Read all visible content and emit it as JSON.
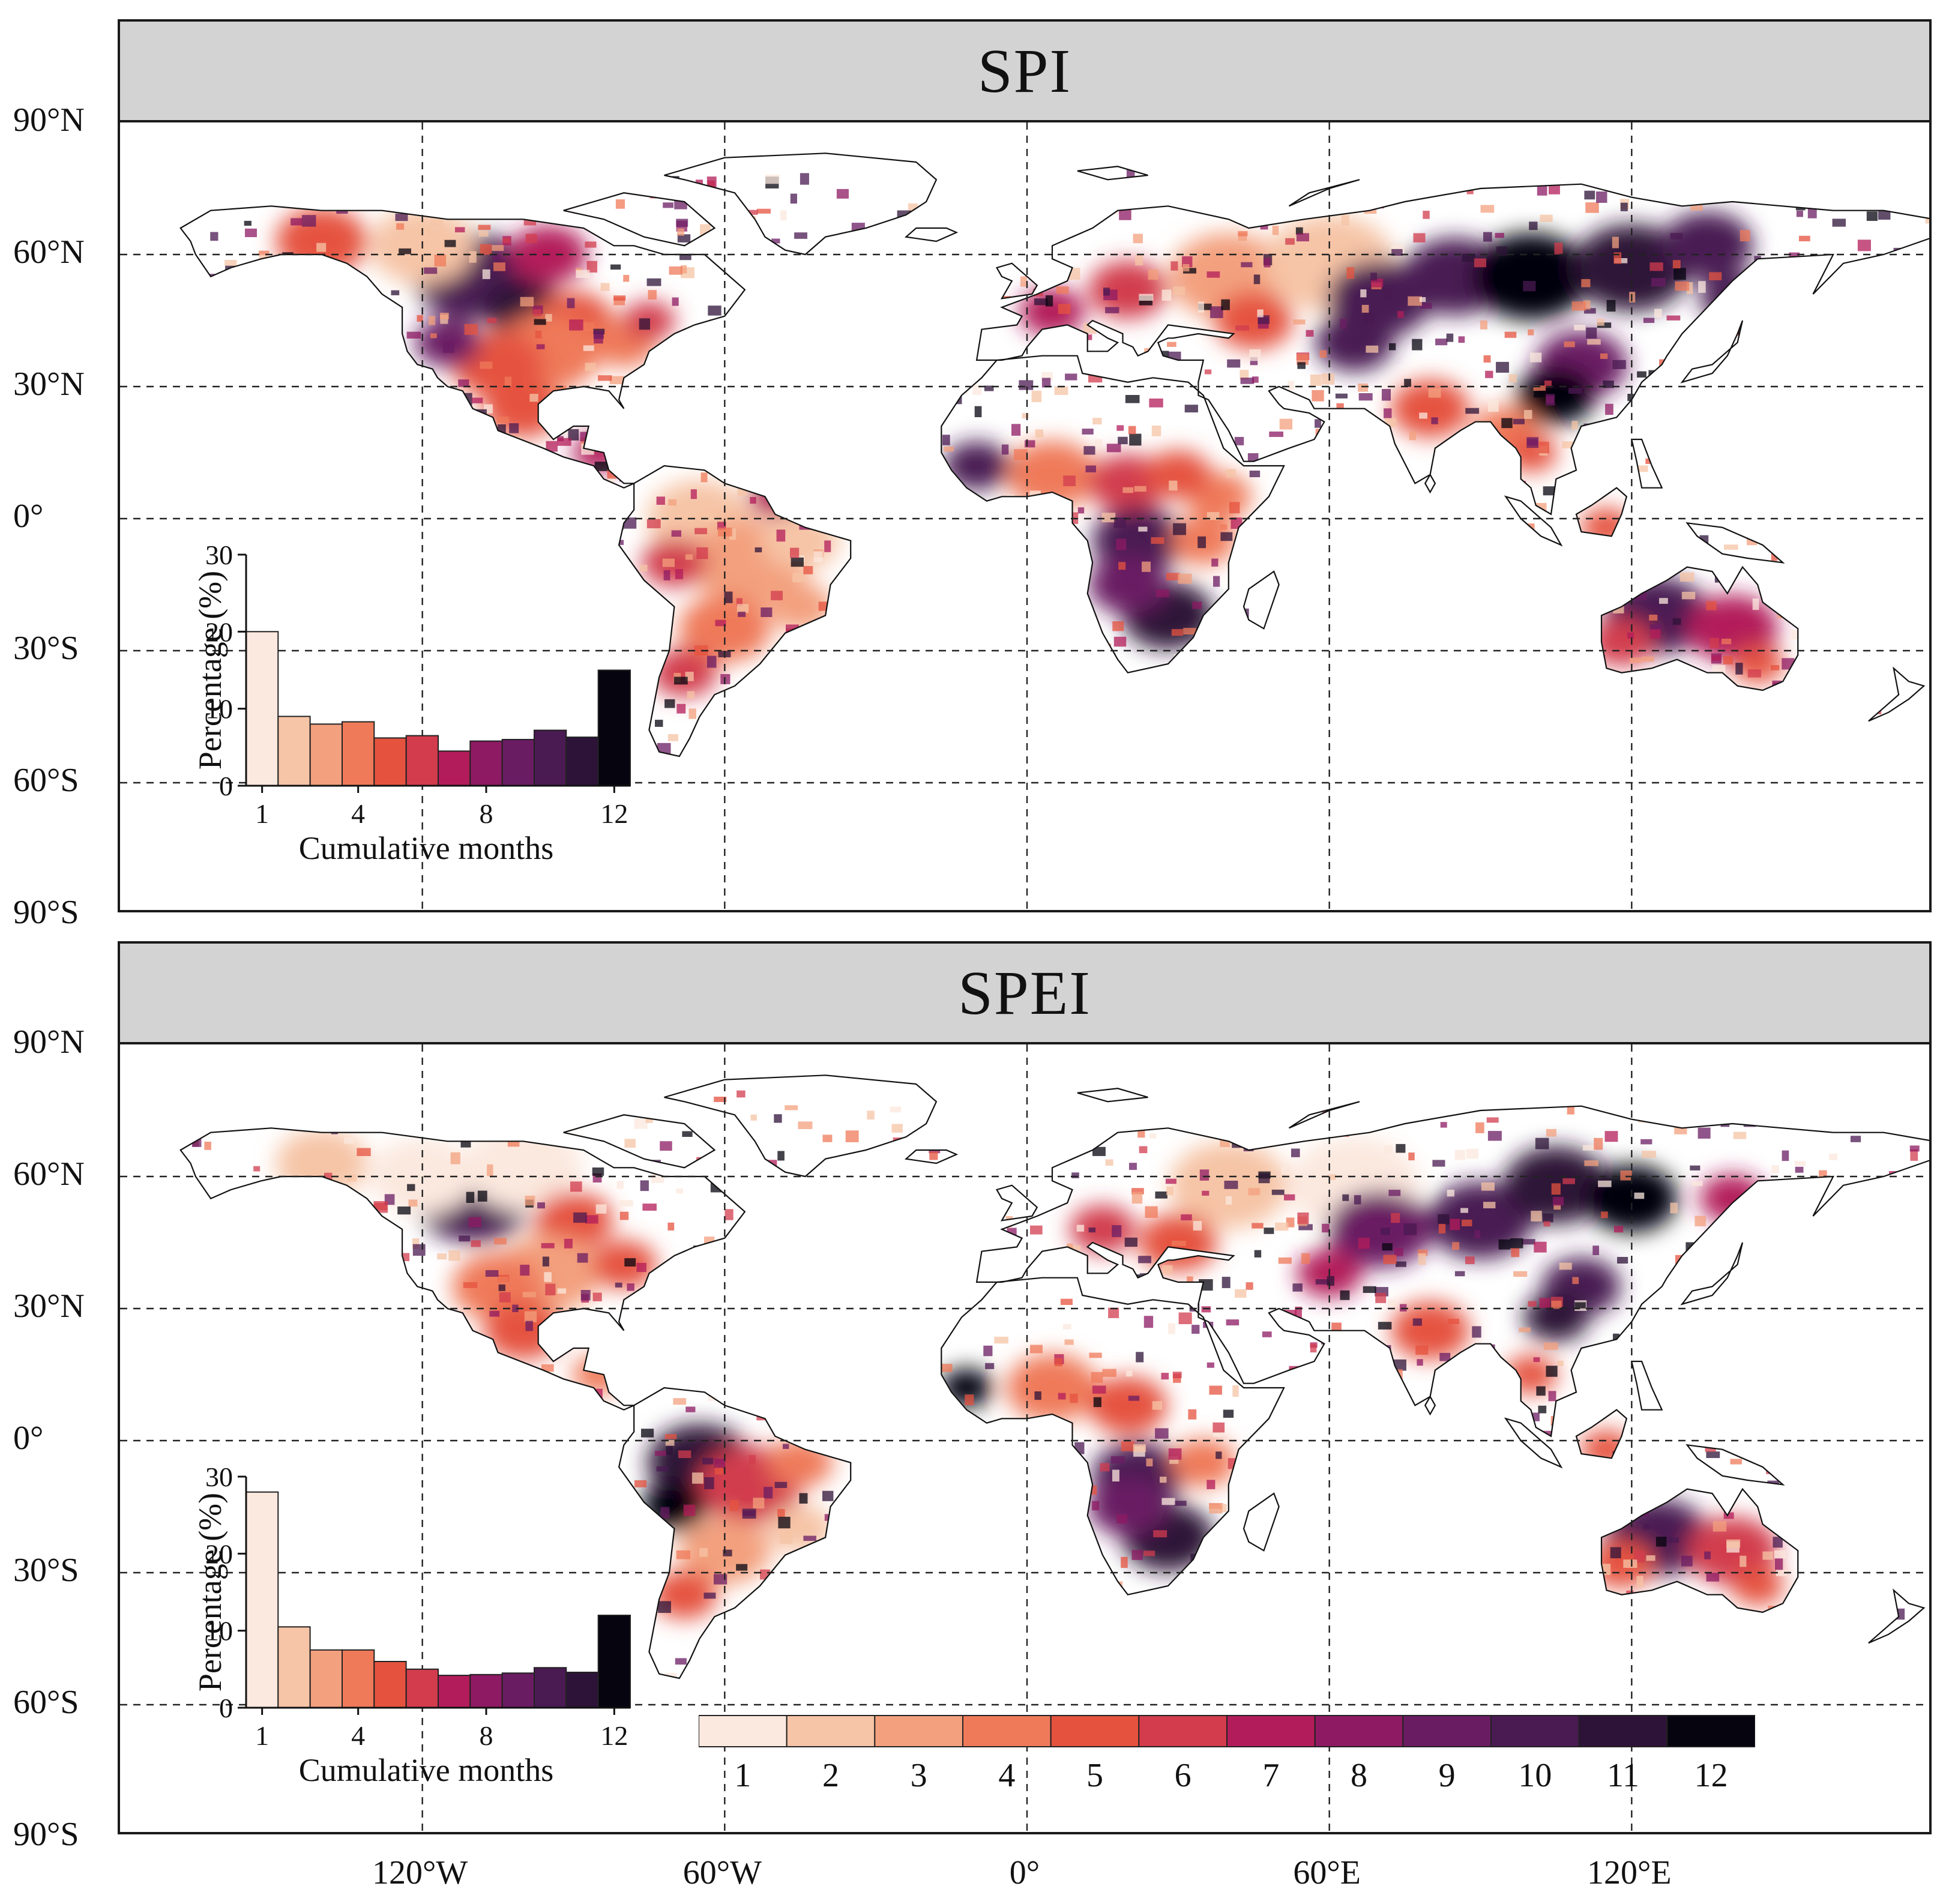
{
  "panels": [
    {
      "title": "SPI",
      "histogram": {
        "ylabel": "Percentage (%)",
        "xlabel": "Cumulative months",
        "yticks": [
          "0",
          "10",
          "20",
          "30"
        ],
        "xticks": [
          "1",
          "4",
          "8",
          "12"
        ]
      }
    },
    {
      "title": "SPEI",
      "histogram": {
        "ylabel": "Percentage (%)",
        "xlabel": "Cumulative months",
        "yticks": [
          "0",
          "10",
          "20",
          "30"
        ],
        "xticks": [
          "1",
          "4",
          "8",
          "12"
        ]
      }
    }
  ],
  "lat_labels": [
    "90°N",
    "60°N",
    "30°N",
    "0°",
    "30°S",
    "60°S",
    "90°S"
  ],
  "lon_labels": [
    "120°W",
    "60°W",
    "0°",
    "60°E",
    "120°E"
  ],
  "legend": {
    "labels": [
      "1",
      "2",
      "3",
      "4",
      "5",
      "6",
      "7",
      "8",
      "9",
      "10",
      "11",
      "12"
    ],
    "colors": [
      "#fbe8de",
      "#f6c4a6",
      "#f3a07e",
      "#ef7a5a",
      "#e5533f",
      "#d23c4d",
      "#b31c5a",
      "#8e1a63",
      "#6a1c63",
      "#4a1a52",
      "#2d1338",
      "#06040f"
    ]
  },
  "colors": {
    "strip_bg": "#d3d3d3",
    "frame": "#1a1a1a",
    "grid": "#222222",
    "land_none": "#ffffff"
  },
  "chart_data": [
    {
      "type": "bar",
      "title": "SPI",
      "xlabel": "Cumulative months",
      "ylabel": "Percentage (%)",
      "categories": [
        1,
        2,
        3,
        4,
        5,
        6,
        7,
        8,
        9,
        10,
        11,
        12
      ],
      "values": [
        20,
        9,
        8,
        8.3,
        6.2,
        6.5,
        4.5,
        5.8,
        6,
        7.2,
        6.3,
        15
      ],
      "ylim": [
        0,
        30
      ],
      "xticks": [
        1,
        4,
        8,
        12
      ],
      "yticks": [
        0,
        10,
        20,
        30
      ]
    },
    {
      "type": "bar",
      "title": "SPEI",
      "xlabel": "Cumulative months",
      "ylabel": "Percentage (%)",
      "categories": [
        1,
        2,
        3,
        4,
        5,
        6,
        7,
        8,
        9,
        10,
        11,
        12
      ],
      "values": [
        28,
        10.5,
        7.5,
        7.5,
        6,
        5,
        4.2,
        4.3,
        4.5,
        5.2,
        4.6,
        12
      ],
      "ylim": [
        0,
        30
      ],
      "xticks": [
        1,
        4,
        8,
        12
      ],
      "yticks": [
        0,
        10,
        20,
        30
      ]
    }
  ]
}
